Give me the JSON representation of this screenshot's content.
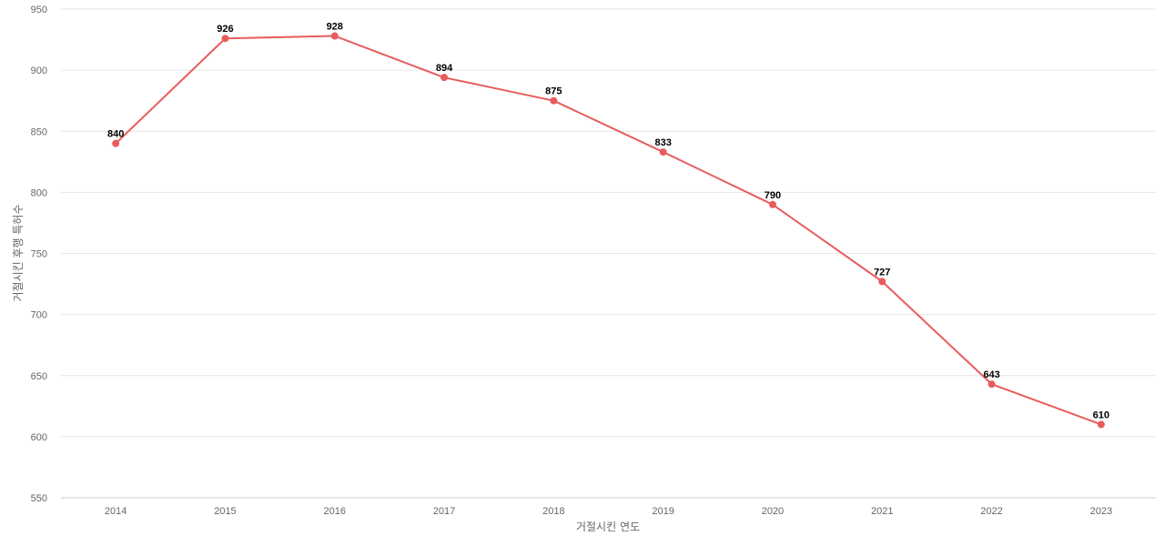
{
  "chart_data": {
    "type": "line",
    "title": "",
    "xlabel": "거절시킨 연도",
    "ylabel": "거절시킨 후행 특허수",
    "categories": [
      "2014",
      "2015",
      "2016",
      "2017",
      "2018",
      "2019",
      "2020",
      "2021",
      "2022",
      "2023"
    ],
    "series": [
      {
        "name": "",
        "values": [
          840,
          926,
          928,
          894,
          875,
          833,
          790,
          727,
          643,
          610
        ],
        "color": "#e85c5c"
      }
    ],
    "ylim": [
      550,
      950
    ],
    "yticks": [
      550,
      600,
      650,
      700,
      750,
      800,
      850,
      900,
      950
    ],
    "grid": true,
    "legend": "none",
    "data_labels": true
  }
}
